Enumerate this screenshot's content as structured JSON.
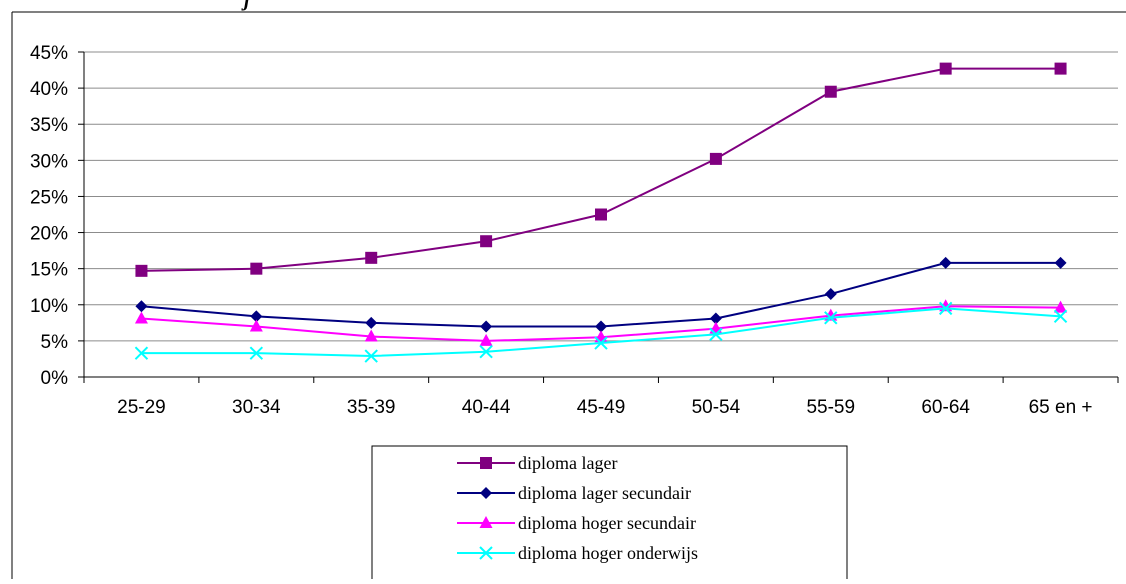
{
  "title_fragment": "j",
  "chart_data": {
    "type": "line",
    "categories": [
      "25-29",
      "30-34",
      "35-39",
      "40-44",
      "45-49",
      "50-54",
      "55-59",
      "60-64",
      "65 en +"
    ],
    "ylim": [
      0,
      45
    ],
    "y_ticks": [
      0,
      5,
      10,
      15,
      20,
      25,
      30,
      35,
      40,
      45
    ],
    "y_tick_labels": [
      "0%",
      "5%",
      "10%",
      "15%",
      "20%",
      "25%",
      "30%",
      "35%",
      "40%",
      "45%"
    ],
    "y_unit": "%",
    "grid": true,
    "legend_position": "bottom",
    "series": [
      {
        "name": "diploma lager",
        "values": [
          14.7,
          15.0,
          16.5,
          18.8,
          22.5,
          30.2,
          39.5,
          42.7,
          42.7
        ],
        "color": "#800080",
        "marker": "square"
      },
      {
        "name": "diploma lager secundair",
        "values": [
          9.8,
          8.4,
          7.5,
          7.0,
          7.0,
          8.1,
          11.5,
          15.8,
          15.8
        ],
        "color": "#000080",
        "marker": "diamond"
      },
      {
        "name": "diploma hoger secundair",
        "values": [
          8.1,
          7.0,
          5.6,
          5.0,
          5.5,
          6.7,
          8.5,
          9.8,
          9.6
        ],
        "color": "#ff00ff",
        "marker": "triangle"
      },
      {
        "name": "diploma hoger onderwijs",
        "values": [
          3.3,
          3.3,
          2.9,
          3.5,
          4.7,
          5.9,
          8.2,
          9.5,
          8.4
        ],
        "color": "#00ffff",
        "marker": "x"
      }
    ]
  }
}
